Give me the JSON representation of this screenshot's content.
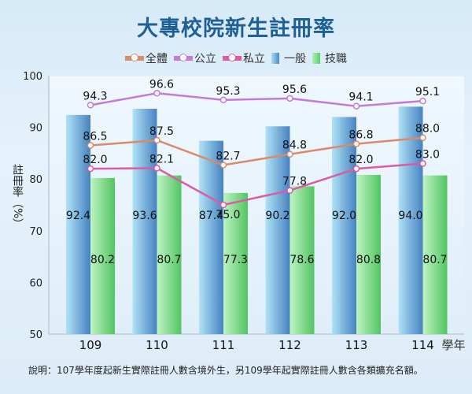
{
  "chart_data": {
    "type": "bar+line",
    "title": "大專校院新生註冊率",
    "ylabel": "註冊率（%）",
    "xlabel": "學年",
    "ylim": [
      50,
      100
    ],
    "yticks": [
      50,
      60,
      70,
      80,
      90,
      100
    ],
    "categories": [
      "109",
      "110",
      "111",
      "112",
      "113",
      "114"
    ],
    "bar_series": [
      {
        "name": "一般",
        "values": [
          92.4,
          93.6,
          87.4,
          90.2,
          92.0,
          94.0
        ],
        "color": "#4a8ac8"
      },
      {
        "name": "技職",
        "values": [
          80.2,
          80.7,
          77.3,
          78.6,
          80.8,
          80.7
        ],
        "color": "#5ccc6c"
      }
    ],
    "line_series": [
      {
        "name": "全體",
        "values": [
          86.5,
          87.5,
          82.7,
          84.8,
          86.8,
          88.0
        ],
        "color": "#d98a6a"
      },
      {
        "name": "公立",
        "values": [
          94.3,
          96.6,
          95.3,
          95.6,
          94.1,
          95.1
        ],
        "color": "#c47ad6"
      },
      {
        "name": "私立",
        "values": [
          82.0,
          82.1,
          75.0,
          77.8,
          82.0,
          83.0
        ],
        "color": "#dc5aa6"
      }
    ],
    "legend": "top",
    "grid": false
  },
  "note": "說明：107學年度起新生實際註冊人數含境外生，另109學年起實際註冊人數含各類擴充名額。"
}
